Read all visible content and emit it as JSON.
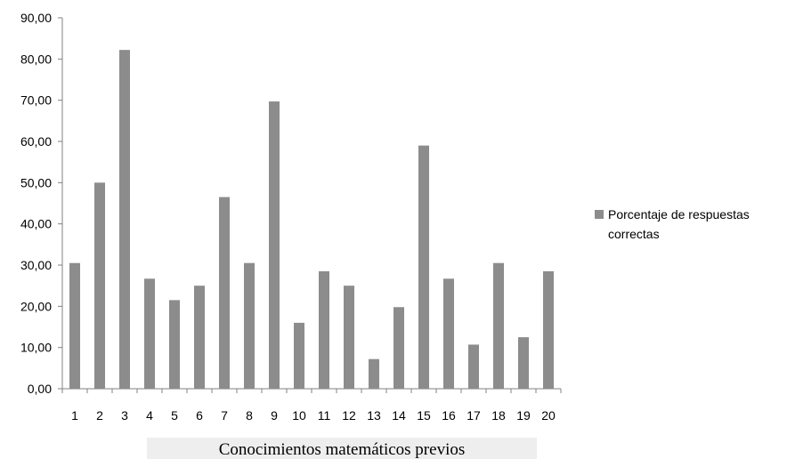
{
  "chart_data": {
    "type": "bar",
    "categories": [
      "1",
      "2",
      "3",
      "4",
      "5",
      "6",
      "7",
      "8",
      "9",
      "10",
      "11",
      "12",
      "13",
      "14",
      "15",
      "16",
      "17",
      "18",
      "19",
      "20"
    ],
    "series": [
      {
        "name": "Porcentaje de respuestas correctas",
        "values": [
          30.5,
          50.0,
          82.2,
          26.7,
          21.5,
          25.0,
          46.5,
          30.5,
          69.7,
          16.0,
          28.5,
          25.0,
          7.2,
          19.8,
          59.0,
          26.7,
          10.7,
          30.5,
          12.5,
          28.5
        ]
      }
    ],
    "yticks": [
      "0,00",
      "10,00",
      "20,00",
      "30,00",
      "40,00",
      "50,00",
      "60,00",
      "70,00",
      "80,00",
      "90,00"
    ],
    "ylim": [
      0,
      90
    ],
    "xlabel": "Conocimientos matemáticos previos",
    "ylabel": "",
    "title": "",
    "legend_lines": [
      "Porcentaje de respuestas",
      "correctas"
    ],
    "legend_position": "right",
    "grid": false,
    "bar_color": "#8c8c8c",
    "xlabel_background": "#eeeeee"
  }
}
